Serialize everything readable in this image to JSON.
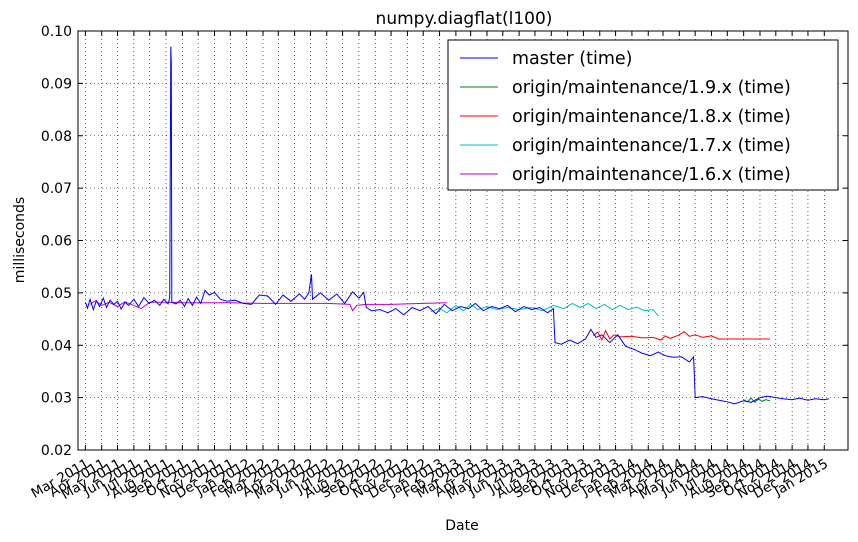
{
  "chart_data": {
    "type": "line",
    "title": "numpy.diagflat(l100)",
    "xlabel": "Date",
    "ylabel": "milliseconds",
    "ylim": [
      0.02,
      0.1
    ],
    "xlim": [
      "2011-02-15",
      "2015-02-15"
    ],
    "yticks": [
      "0.02",
      "0.03",
      "0.04",
      "0.05",
      "0.06",
      "0.07",
      "0.08",
      "0.09",
      "0.10"
    ],
    "xtick_labels": [
      {
        "date": "2011-03-01",
        "label": "Mar 2011"
      },
      {
        "date": "2011-04-01",
        "label": "Apr 2011"
      },
      {
        "date": "2011-05-01",
        "label": "May 2011"
      },
      {
        "date": "2011-06-01",
        "label": "Jun 2011"
      },
      {
        "date": "2011-07-01",
        "label": "Jul 2011"
      },
      {
        "date": "2011-08-01",
        "label": "Aug 2011"
      },
      {
        "date": "2011-09-01",
        "label": "Sep 2011"
      },
      {
        "date": "2011-10-01",
        "label": "Oct 2011"
      },
      {
        "date": "2011-11-01",
        "label": "Nov 2011"
      },
      {
        "date": "2011-12-01",
        "label": "Dec 2011"
      },
      {
        "date": "2012-01-01",
        "label": "Jan 2012"
      },
      {
        "date": "2012-02-01",
        "label": "Feb 2012"
      },
      {
        "date": "2012-03-01",
        "label": "Mar 2012"
      },
      {
        "date": "2012-04-01",
        "label": "Apr 2012"
      },
      {
        "date": "2012-05-01",
        "label": "May 2012"
      },
      {
        "date": "2012-06-01",
        "label": "Jun 2012"
      },
      {
        "date": "2012-07-01",
        "label": "Jul 2012"
      },
      {
        "date": "2012-08-01",
        "label": "Aug 2012"
      },
      {
        "date": "2012-09-01",
        "label": "Sep 2012"
      },
      {
        "date": "2012-10-01",
        "label": "Oct 2012"
      },
      {
        "date": "2012-11-01",
        "label": "Nov 2012"
      },
      {
        "date": "2012-12-01",
        "label": "Dec 2012"
      },
      {
        "date": "2013-01-01",
        "label": "Jan 2013"
      },
      {
        "date": "2013-02-01",
        "label": "Feb 2013"
      },
      {
        "date": "2013-03-01",
        "label": "Mar 2013"
      },
      {
        "date": "2013-04-01",
        "label": "Apr 2013"
      },
      {
        "date": "2013-05-01",
        "label": "May 2013"
      },
      {
        "date": "2013-06-01",
        "label": "Jun 2013"
      },
      {
        "date": "2013-07-01",
        "label": "Jul 2013"
      },
      {
        "date": "2013-08-01",
        "label": "Aug 2013"
      },
      {
        "date": "2013-09-01",
        "label": "Sep 2013"
      },
      {
        "date": "2013-10-01",
        "label": "Oct 2013"
      },
      {
        "date": "2013-11-01",
        "label": "Nov 2013"
      },
      {
        "date": "2013-12-01",
        "label": "Dec 2013"
      },
      {
        "date": "2014-01-01",
        "label": "Jan 2014"
      },
      {
        "date": "2014-02-01",
        "label": "Feb 2014"
      },
      {
        "date": "2014-03-01",
        "label": "Mar 2014"
      },
      {
        "date": "2014-04-01",
        "label": "Apr 2014"
      },
      {
        "date": "2014-05-01",
        "label": "May 2014"
      },
      {
        "date": "2014-06-01",
        "label": "Jun 2014"
      },
      {
        "date": "2014-07-01",
        "label": "Jul 2014"
      },
      {
        "date": "2014-08-01",
        "label": "Aug 2014"
      },
      {
        "date": "2014-09-01",
        "label": "Sep 2014"
      },
      {
        "date": "2014-10-01",
        "label": "Oct 2014"
      },
      {
        "date": "2014-11-01",
        "label": "Nov 2014"
      },
      {
        "date": "2014-12-01",
        "label": "Dec 2014"
      },
      {
        "date": "2015-01-01",
        "label": "Jan 2015"
      }
    ],
    "grid": true,
    "legend_position": "top-right",
    "series": [
      {
        "name": "master (time)",
        "color": "#0000ff",
        "points": [
          [
            "2011-03-01",
            0.0482
          ],
          [
            "2011-03-05",
            0.0471
          ],
          [
            "2011-03-10",
            0.0488
          ],
          [
            "2011-03-16",
            0.0468
          ],
          [
            "2011-03-22",
            0.0485
          ],
          [
            "2011-03-28",
            0.0474
          ],
          [
            "2011-04-04",
            0.049
          ],
          [
            "2011-04-10",
            0.0472
          ],
          [
            "2011-04-17",
            0.0486
          ],
          [
            "2011-04-24",
            0.0478
          ],
          [
            "2011-05-01",
            0.0484
          ],
          [
            "2011-05-08",
            0.0469
          ],
          [
            "2011-05-15",
            0.0482
          ],
          [
            "2011-05-22",
            0.0476
          ],
          [
            "2011-06-01",
            0.0488
          ],
          [
            "2011-06-10",
            0.0474
          ],
          [
            "2011-06-20",
            0.0491
          ],
          [
            "2011-06-30",
            0.048
          ],
          [
            "2011-07-10",
            0.0486
          ],
          [
            "2011-07-20",
            0.0476
          ],
          [
            "2011-07-28",
            0.0488
          ],
          [
            "2011-08-05",
            0.0479
          ],
          [
            "2011-08-08",
            0.049
          ],
          [
            "2011-08-10",
            0.097
          ],
          [
            "2011-08-11",
            0.094
          ],
          [
            "2011-08-12",
            0.0482
          ],
          [
            "2011-08-20",
            0.0479
          ],
          [
            "2011-08-28",
            0.0486
          ],
          [
            "2011-09-05",
            0.0474
          ],
          [
            "2011-09-12",
            0.0489
          ],
          [
            "2011-09-20",
            0.0476
          ],
          [
            "2011-09-28",
            0.0492
          ],
          [
            "2011-10-06",
            0.048
          ],
          [
            "2011-10-14",
            0.0505
          ],
          [
            "2011-10-22",
            0.0496
          ],
          [
            "2011-11-01",
            0.0501
          ],
          [
            "2011-11-12",
            0.0488
          ],
          [
            "2011-11-25",
            0.0484
          ],
          [
            "2011-12-10",
            0.0486
          ],
          [
            "2011-12-25",
            0.048
          ],
          [
            "2012-01-10",
            0.0478
          ],
          [
            "2012-01-25",
            0.0496
          ],
          [
            "2012-02-10",
            0.0494
          ],
          [
            "2012-02-25",
            0.0478
          ],
          [
            "2012-03-10",
            0.0496
          ],
          [
            "2012-03-25",
            0.0484
          ],
          [
            "2012-04-10",
            0.0498
          ],
          [
            "2012-04-20",
            0.0488
          ],
          [
            "2012-04-28",
            0.05
          ],
          [
            "2012-05-03",
            0.0535
          ],
          [
            "2012-05-05",
            0.0488
          ],
          [
            "2012-05-20",
            0.05
          ],
          [
            "2012-06-05",
            0.0486
          ],
          [
            "2012-06-20",
            0.0498
          ],
          [
            "2012-07-05",
            0.048
          ],
          [
            "2012-07-20",
            0.0502
          ],
          [
            "2012-08-01",
            0.049
          ],
          [
            "2012-08-10",
            0.0501
          ],
          [
            "2012-08-15",
            0.0472
          ],
          [
            "2012-08-25",
            0.0466
          ],
          [
            "2012-09-10",
            0.0468
          ],
          [
            "2012-09-25",
            0.0462
          ],
          [
            "2012-10-10",
            0.047
          ],
          [
            "2012-10-25",
            0.0458
          ],
          [
            "2012-11-10",
            0.0472
          ],
          [
            "2012-11-25",
            0.0466
          ],
          [
            "2012-12-10",
            0.0474
          ],
          [
            "2012-12-25",
            0.046
          ],
          [
            "2013-01-10",
            0.0478
          ],
          [
            "2013-01-25",
            0.0466
          ],
          [
            "2013-02-10",
            0.0474
          ],
          [
            "2013-02-25",
            0.047
          ],
          [
            "2013-03-10",
            0.048
          ],
          [
            "2013-03-25",
            0.0466
          ],
          [
            "2013-04-10",
            0.0474
          ],
          [
            "2013-04-25",
            0.047
          ],
          [
            "2013-05-10",
            0.0476
          ],
          [
            "2013-05-25",
            0.0464
          ],
          [
            "2013-06-10",
            0.0474
          ],
          [
            "2013-06-25",
            0.0468
          ],
          [
            "2013-07-10",
            0.0472
          ],
          [
            "2013-07-25",
            0.0462
          ],
          [
            "2013-08-05",
            0.047
          ],
          [
            "2013-08-08",
            0.0405
          ],
          [
            "2013-08-20",
            0.0402
          ],
          [
            "2013-09-05",
            0.041
          ],
          [
            "2013-09-20",
            0.0403
          ],
          [
            "2013-10-05",
            0.0412
          ],
          [
            "2013-10-15",
            0.043
          ],
          [
            "2013-10-25",
            0.0415
          ],
          [
            "2013-11-05",
            0.042
          ],
          [
            "2013-11-20",
            0.0405
          ],
          [
            "2013-12-05",
            0.042
          ],
          [
            "2013-12-20",
            0.0398
          ],
          [
            "2014-01-05",
            0.0392
          ],
          [
            "2014-01-20",
            0.0385
          ],
          [
            "2014-02-05",
            0.038
          ],
          [
            "2014-02-20",
            0.0387
          ],
          [
            "2014-03-05",
            0.038
          ],
          [
            "2014-03-20",
            0.0377
          ],
          [
            "2014-04-05",
            0.0378
          ],
          [
            "2014-04-20",
            0.0368
          ],
          [
            "2014-04-28",
            0.0378
          ],
          [
            "2014-05-01",
            0.03
          ],
          [
            "2014-05-15",
            0.0302
          ],
          [
            "2014-06-01",
            0.0298
          ],
          [
            "2014-06-15",
            0.0295
          ],
          [
            "2014-07-01",
            0.0292
          ],
          [
            "2014-07-15",
            0.0288
          ],
          [
            "2014-08-01",
            0.0294
          ],
          [
            "2014-08-15",
            0.0291
          ],
          [
            "2014-09-01",
            0.03
          ],
          [
            "2014-09-15",
            0.0303
          ],
          [
            "2014-10-01",
            0.03
          ],
          [
            "2014-10-15",
            0.0298
          ],
          [
            "2014-11-01",
            0.0296
          ],
          [
            "2014-11-15",
            0.0299
          ],
          [
            "2014-12-01",
            0.0295
          ],
          [
            "2014-12-15",
            0.0298
          ],
          [
            "2015-01-01",
            0.0296
          ],
          [
            "2015-01-10",
            0.0298
          ]
        ]
      },
      {
        "name": "origin/maintenance/1.9.x (time)",
        "color": "#008000",
        "points": [
          [
            "2014-08-01",
            0.0296
          ],
          [
            "2014-08-08",
            0.0292
          ],
          [
            "2014-08-15",
            0.0299
          ],
          [
            "2014-08-22",
            0.0291
          ],
          [
            "2014-08-29",
            0.0297
          ],
          [
            "2014-09-05",
            0.0293
          ],
          [
            "2014-09-12",
            0.0296
          ],
          [
            "2014-09-20",
            0.0294
          ]
        ]
      },
      {
        "name": "origin/maintenance/1.8.x (time)",
        "color": "#ff0000",
        "points": [
          [
            "2013-10-20",
            0.0418
          ],
          [
            "2013-10-28",
            0.0425
          ],
          [
            "2013-11-05",
            0.041
          ],
          [
            "2013-11-12",
            0.0428
          ],
          [
            "2013-11-20",
            0.0412
          ],
          [
            "2013-11-28",
            0.042
          ],
          [
            "2013-12-10",
            0.0416
          ],
          [
            "2014-01-01",
            0.0417
          ],
          [
            "2014-01-20",
            0.0414
          ],
          [
            "2014-02-10",
            0.0415
          ],
          [
            "2014-02-25",
            0.041
          ],
          [
            "2014-03-05",
            0.0418
          ],
          [
            "2014-03-15",
            0.0413
          ],
          [
            "2014-04-01",
            0.042
          ],
          [
            "2014-04-10",
            0.0426
          ],
          [
            "2014-04-20",
            0.0417
          ],
          [
            "2014-05-01",
            0.042
          ],
          [
            "2014-05-15",
            0.0415
          ],
          [
            "2014-06-01",
            0.0418
          ],
          [
            "2014-06-15",
            0.0412
          ],
          [
            "2014-07-01",
            0.0412
          ],
          [
            "2014-08-01",
            0.0412
          ],
          [
            "2014-09-01",
            0.0412
          ],
          [
            "2014-09-20",
            0.0412
          ]
        ]
      },
      {
        "name": "origin/maintenance/1.7.x (time)",
        "color": "#00bfbf",
        "points": [
          [
            "2012-12-15",
            0.0464
          ],
          [
            "2013-01-01",
            0.047
          ],
          [
            "2013-01-15",
            0.0462
          ],
          [
            "2013-02-01",
            0.0476
          ],
          [
            "2013-02-15",
            0.0466
          ],
          [
            "2013-03-01",
            0.0478
          ],
          [
            "2013-03-15",
            0.0468
          ],
          [
            "2013-04-01",
            0.0474
          ],
          [
            "2013-04-20",
            0.0468
          ],
          [
            "2013-05-10",
            0.0472
          ],
          [
            "2013-06-01",
            0.0468
          ],
          [
            "2013-06-25",
            0.0472
          ],
          [
            "2013-07-15",
            0.0466
          ],
          [
            "2013-08-05",
            0.0476
          ],
          [
            "2013-08-25",
            0.047
          ],
          [
            "2013-09-10",
            0.048
          ],
          [
            "2013-09-25",
            0.0472
          ],
          [
            "2013-10-10",
            0.048
          ],
          [
            "2013-10-25",
            0.047
          ],
          [
            "2013-11-10",
            0.0478
          ],
          [
            "2013-11-25",
            0.0468
          ],
          [
            "2013-12-10",
            0.0476
          ],
          [
            "2013-12-25",
            0.0468
          ],
          [
            "2014-01-10",
            0.0473
          ],
          [
            "2014-01-25",
            0.0466
          ],
          [
            "2014-02-10",
            0.0468
          ],
          [
            "2014-02-20",
            0.0456
          ]
        ]
      },
      {
        "name": "origin/maintenance/1.6.x (time)",
        "color": "#bf00bf",
        "points": [
          [
            "2011-03-10",
            0.0478
          ],
          [
            "2011-03-20",
            0.0485
          ],
          [
            "2011-04-01",
            0.0476
          ],
          [
            "2011-04-15",
            0.0482
          ],
          [
            "2011-05-01",
            0.0474
          ],
          [
            "2011-05-15",
            0.0483
          ],
          [
            "2011-06-01",
            0.0476
          ],
          [
            "2011-06-15",
            0.047
          ],
          [
            "2011-07-01",
            0.0482
          ],
          [
            "2011-08-01",
            0.0482
          ],
          [
            "2011-09-01",
            0.0481
          ],
          [
            "2011-10-01",
            0.0481
          ],
          [
            "2011-12-01",
            0.0481
          ],
          [
            "2012-02-01",
            0.048
          ],
          [
            "2012-04-01",
            0.048
          ],
          [
            "2012-06-01",
            0.048
          ],
          [
            "2012-07-15",
            0.0478
          ],
          [
            "2012-07-20",
            0.0466
          ],
          [
            "2012-07-28",
            0.0476
          ],
          [
            "2012-08-15",
            0.0478
          ],
          [
            "2012-10-01",
            0.0478
          ],
          [
            "2012-12-01",
            0.048
          ],
          [
            "2013-01-15",
            0.0481
          ]
        ]
      }
    ]
  }
}
